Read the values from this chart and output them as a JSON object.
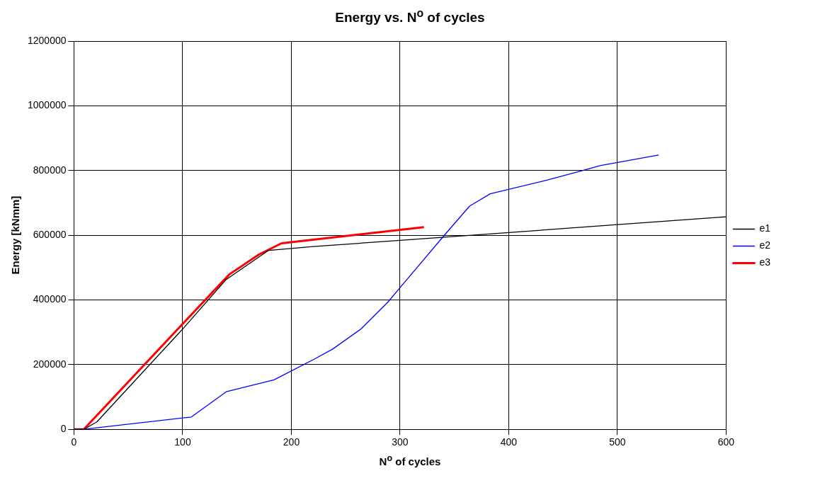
{
  "chart_data": {
    "type": "line",
    "title": "Energy vs. N$^{o}$ of cycles",
    "xlabel": "N$^{o}$ of cycles",
    "ylabel": "Energy [kNmm]",
    "xlim": [
      0,
      600
    ],
    "xticks": [
      0,
      100,
      200,
      300,
      400,
      500,
      600
    ],
    "ylim": [
      0,
      1200000
    ],
    "yticks": [
      0,
      200000,
      400000,
      600000,
      800000,
      1000000,
      1200000
    ],
    "grid": true,
    "legend": "right",
    "marker": "none",
    "line_style": "solid",
    "series": [
      {
        "name": "e1",
        "color": "#000000",
        "x": [
          0,
          9,
          21,
          100,
          140,
          179,
          220,
          300,
          400,
          500,
          600
        ],
        "values": [
          0,
          0,
          23000,
          310000,
          463000,
          553000,
          565000,
          584000,
          608000,
          633000,
          657000
        ]
      },
      {
        "name": "e2",
        "color": "#0000ff",
        "x": [
          0,
          9,
          108,
          140,
          184,
          220,
          238,
          264,
          289,
          300,
          340,
          364,
          383,
          435,
          466,
          484,
          538
        ],
        "values": [
          0,
          0,
          38000,
          116000,
          153000,
          215000,
          248000,
          310000,
          394000,
          438000,
          597000,
          690000,
          728000,
          770000,
          798000,
          815000,
          848000
        ]
      },
      {
        "name": "e3",
        "color": "#ff0000",
        "x": [
          0,
          9,
          100,
          143,
          170,
          191,
          322
        ],
        "values": [
          0,
          0,
          326000,
          479000,
          540000,
          575000,
          625000
        ]
      }
    ]
  }
}
